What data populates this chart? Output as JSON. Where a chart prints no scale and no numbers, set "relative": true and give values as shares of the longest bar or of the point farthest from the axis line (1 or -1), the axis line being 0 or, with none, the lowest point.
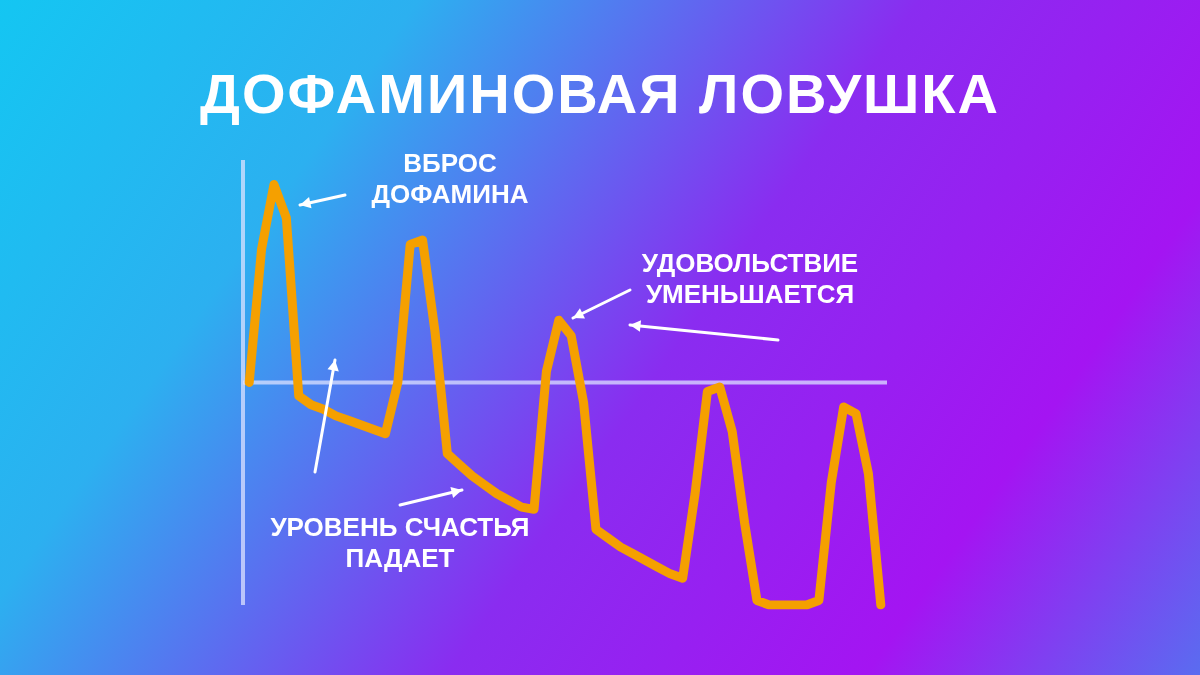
{
  "chart_data": {
    "type": "line",
    "title": "ДОФАМИНОВАЯ ЛОВУШКА",
    "relative": true,
    "legend": false,
    "marker": "none",
    "categories": [
      null,
      null,
      null,
      null,
      null,
      null,
      null,
      null,
      null,
      null,
      null,
      null,
      null,
      null,
      null,
      null,
      null,
      null,
      null,
      null,
      null,
      null,
      null,
      null,
      null,
      null,
      null,
      null,
      null,
      null,
      null,
      null,
      null,
      null,
      null,
      null,
      null,
      null,
      null,
      null,
      null,
      null,
      null,
      null,
      null,
      null,
      null,
      null,
      null,
      null,
      null,
      null
    ],
    "series": [
      {
        "color": "#f5a000",
        "values": [
          0,
          0.6,
          0.89,
          0.74,
          -0.06,
          -0.1,
          -0.12,
          -0.15,
          -0.17,
          -0.19,
          -0.21,
          -0.23,
          0,
          0.62,
          0.64,
          0.23,
          -0.32,
          -0.37,
          -0.42,
          -0.46,
          -0.5,
          -0.53,
          -0.56,
          -0.57,
          0.05,
          0.28,
          0.21,
          -0.09,
          -0.66,
          -0.7,
          -0.74,
          -0.77,
          -0.8,
          -0.83,
          -0.86,
          -0.88,
          -0.5,
          -0.04,
          -0.02,
          -0.22,
          -0.63,
          -0.98,
          -1,
          -1,
          -1,
          -1,
          -0.98,
          -0.45,
          -0.11,
          -0.14,
          -0.41,
          -1
        ]
      }
    ],
    "annotations": [
      "ВБРОС ДОФАМИНА",
      "УДОВОЛЬСТВИЕ УМЕНЬШАЕТСЯ",
      "УРОВЕНЬ СЧАСТЬЯ ПАДАЕТ"
    ]
  }
}
